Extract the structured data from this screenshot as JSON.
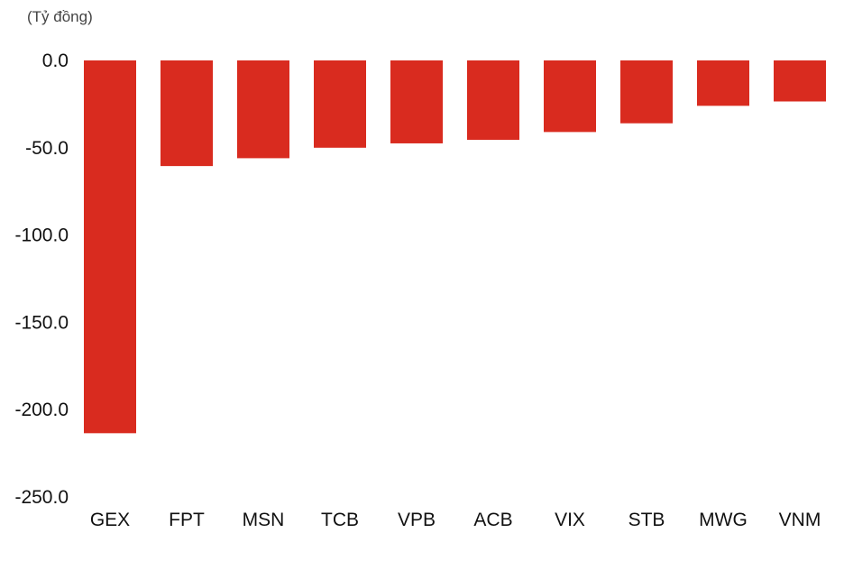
{
  "chart_data": {
    "type": "bar",
    "unit_label": "(Tỷ đồng)",
    "title": "",
    "xlabel": "",
    "ylabel": "",
    "categories": [
      "GEX",
      "FPT",
      "MSN",
      "TCB",
      "VPB",
      "ACB",
      "VIX",
      "STB",
      "MWG",
      "VNM"
    ],
    "values": [
      -213.5,
      -60.5,
      -56.0,
      -50.0,
      -47.5,
      -45.5,
      -41.0,
      -36.0,
      -26.0,
      -23.5
    ],
    "ylim": [
      -250,
      0
    ],
    "yticks": [
      "0.0",
      "-50.0",
      "-100.0",
      "-150.0",
      "-200.0",
      "-250.0"
    ],
    "grid": false,
    "legend": "none",
    "bar_color": "#d92b1f"
  }
}
